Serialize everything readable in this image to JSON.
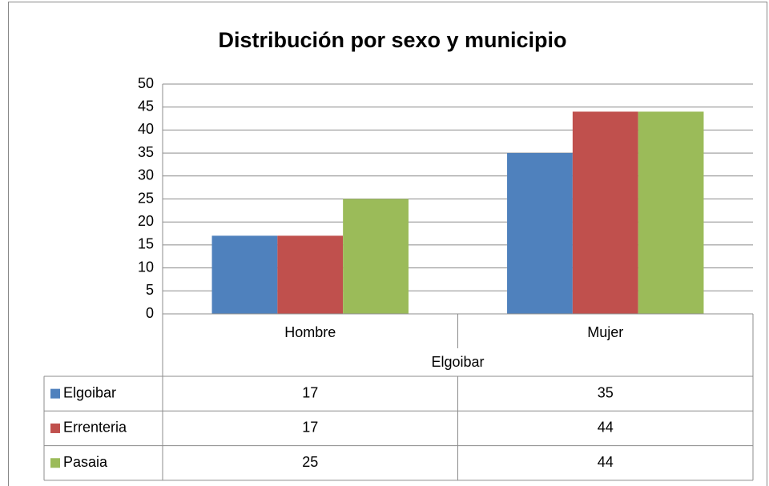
{
  "chart_data": {
    "type": "bar",
    "title": "Distribución por sexo y municipio",
    "categories": [
      "Hombre",
      "Mujer"
    ],
    "group_label": "Elgoibar",
    "series": [
      {
        "name": "Elgoibar",
        "color": "#4f81bd",
        "values": [
          17,
          35
        ]
      },
      {
        "name": "Errenteria",
        "color": "#c0504d",
        "values": [
          17,
          44
        ]
      },
      {
        "name": "Pasaia",
        "color": "#9bbb59",
        "values": [
          25,
          44
        ]
      }
    ],
    "ylim": [
      0,
      50
    ],
    "yticks": [
      0,
      5,
      10,
      15,
      20,
      25,
      30,
      35,
      40,
      45,
      50
    ],
    "grid": true
  }
}
